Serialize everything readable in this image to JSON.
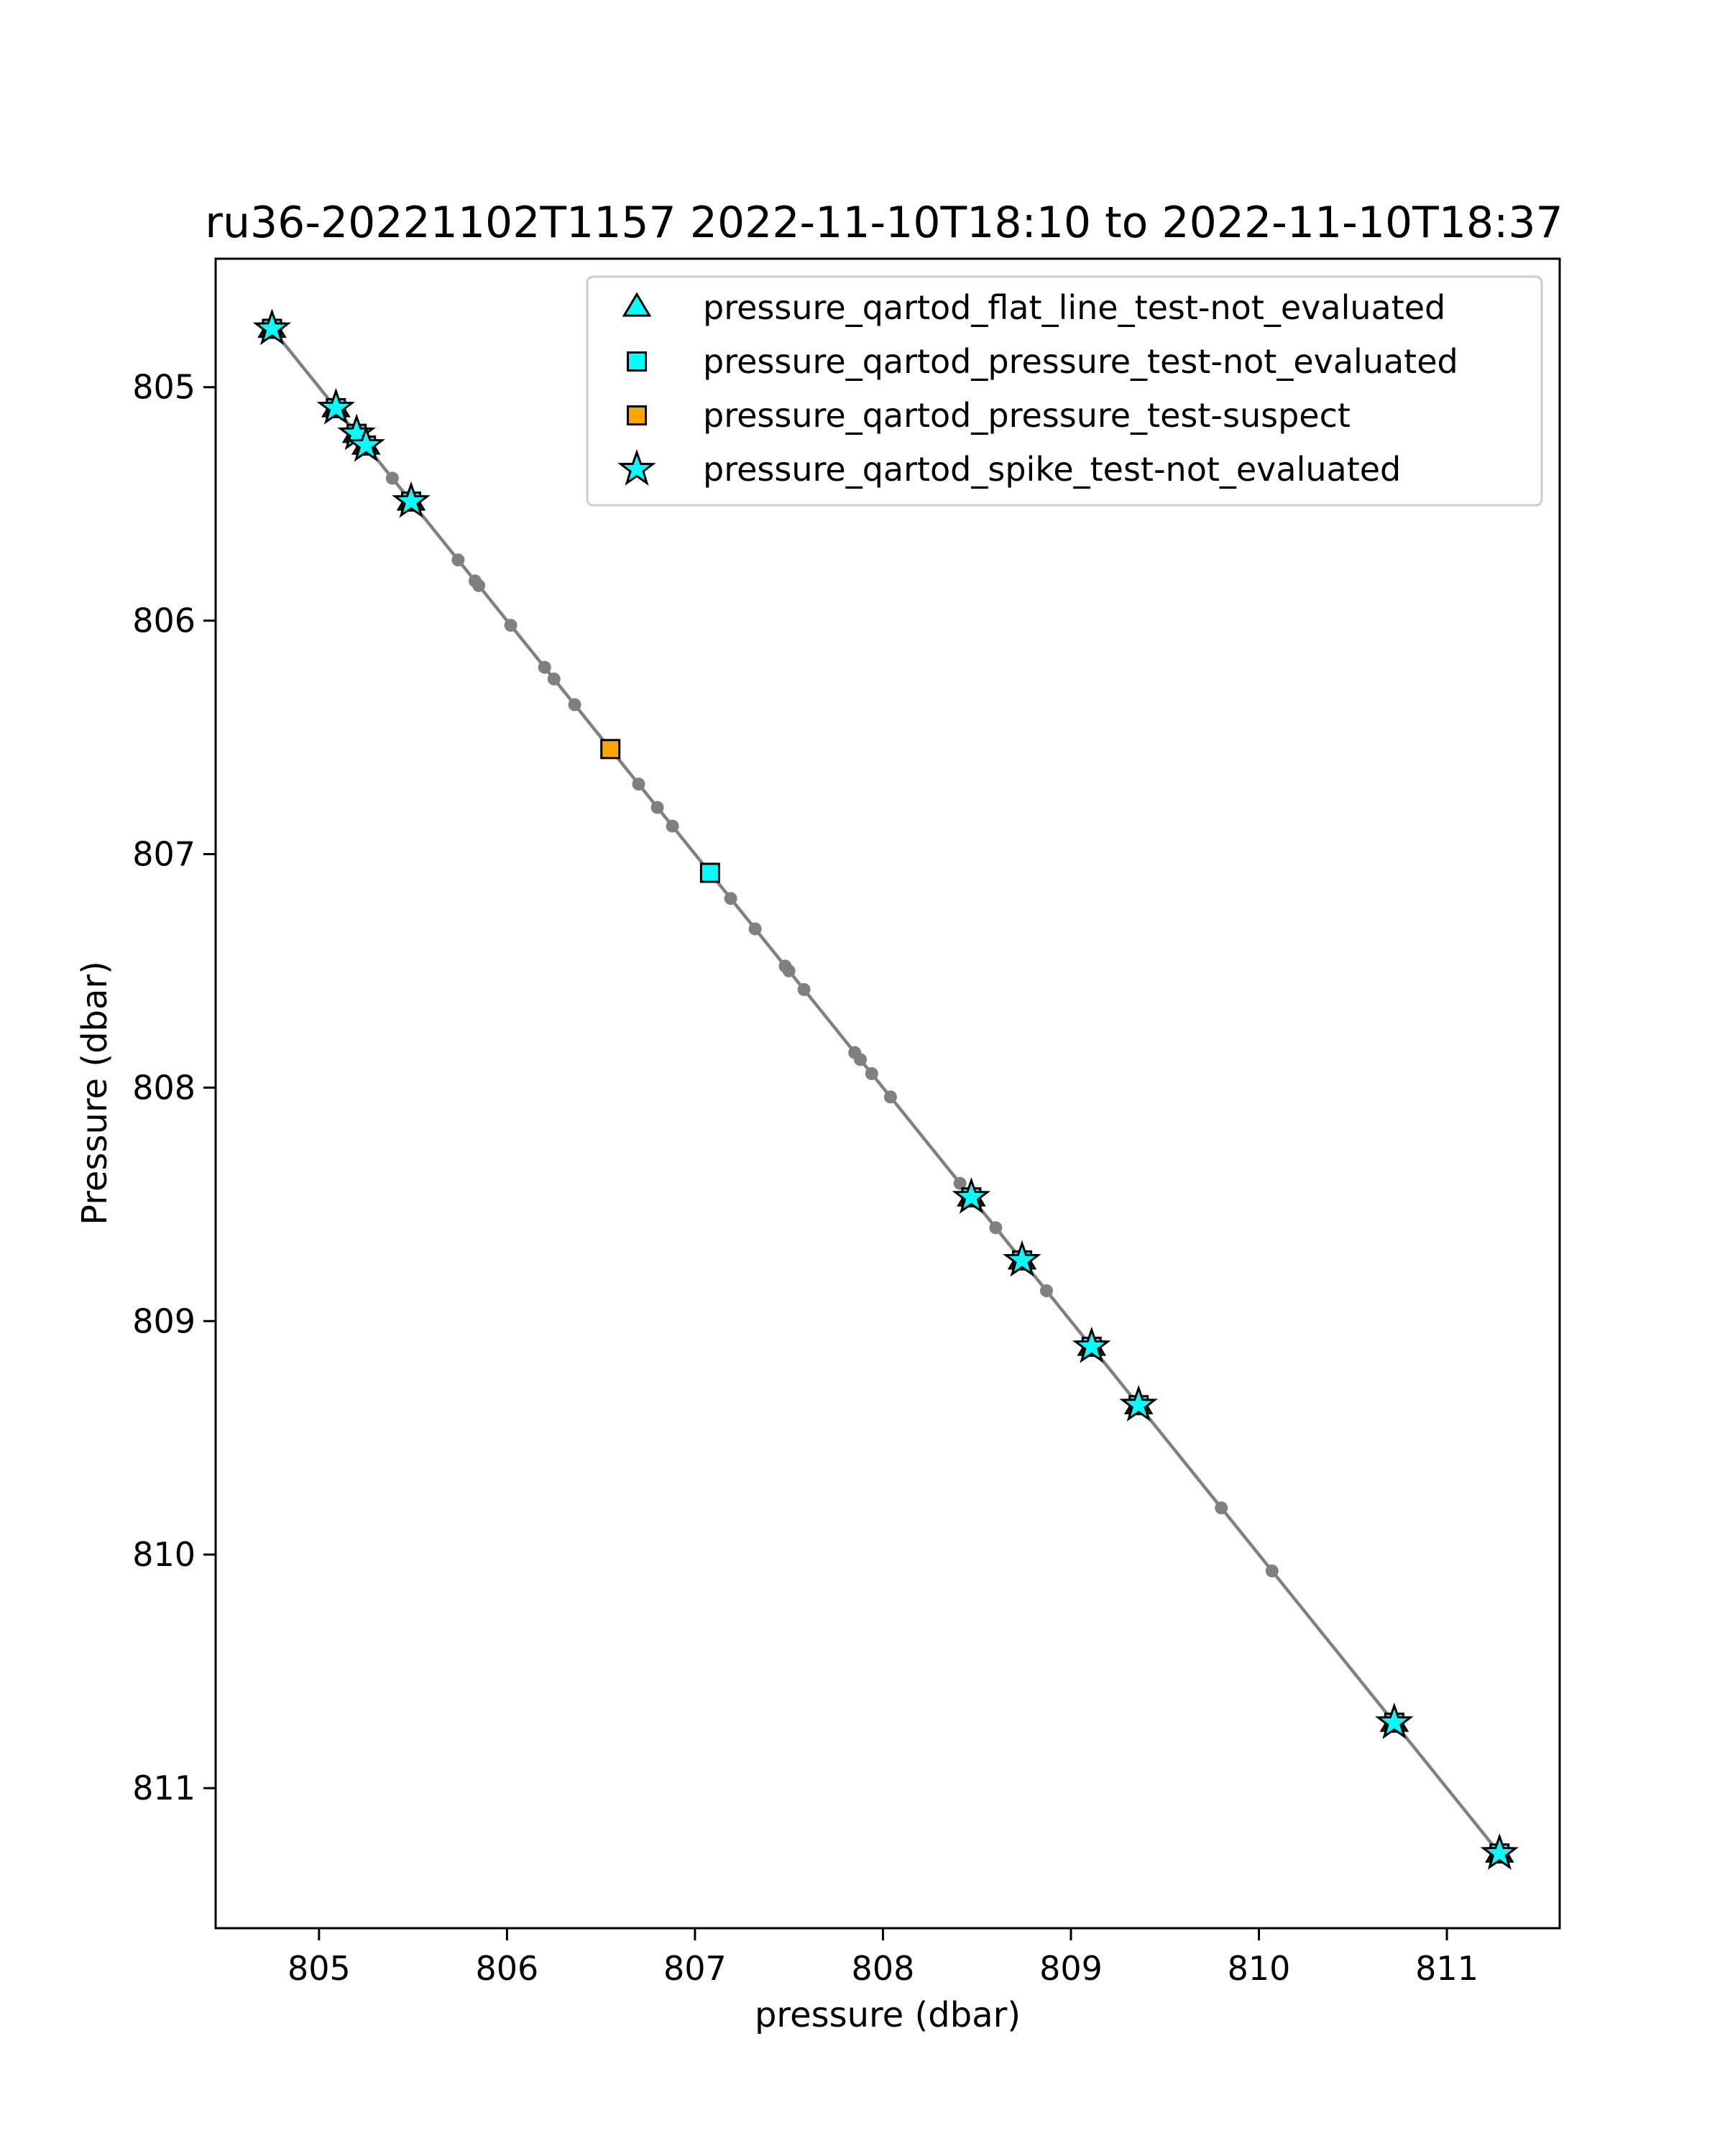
{
  "chart_data": {
    "type": "scatter",
    "title": "ru36-20221102T1157 2022-11-10T18:10 to 2022-11-10T18:37",
    "xlabel": "pressure (dbar)",
    "ylabel": "Pressure (dbar)",
    "xlim": [
      804.45,
      811.6
    ],
    "ylim": [
      811.6,
      804.45
    ],
    "y_inverted": true,
    "xticks": [
      805,
      806,
      807,
      808,
      809,
      810,
      811
    ],
    "yticks": [
      805,
      806,
      807,
      808,
      809,
      810,
      811
    ],
    "grid": false,
    "legend_position": "upper right",
    "line": {
      "color": "#808080",
      "points": [
        [
          804.75,
          804.75
        ],
        [
          805.09,
          805.09
        ],
        [
          805.2,
          805.2
        ],
        [
          805.25,
          805.25
        ],
        [
          805.39,
          805.39
        ],
        [
          805.49,
          805.49
        ],
        [
          805.74,
          805.74
        ],
        [
          805.83,
          805.83
        ],
        [
          805.85,
          805.85
        ],
        [
          806.02,
          806.02
        ],
        [
          806.2,
          806.2
        ],
        [
          806.25,
          806.25
        ],
        [
          806.36,
          806.36
        ],
        [
          806.55,
          806.55
        ],
        [
          806.7,
          806.7
        ],
        [
          806.8,
          806.8
        ],
        [
          806.88,
          806.88
        ],
        [
          807.08,
          807.08
        ],
        [
          807.19,
          807.19
        ],
        [
          807.32,
          807.32
        ],
        [
          807.48,
          807.48
        ],
        [
          807.5,
          807.5
        ],
        [
          807.58,
          807.58
        ],
        [
          807.85,
          807.85
        ],
        [
          807.88,
          807.88
        ],
        [
          807.94,
          807.94
        ],
        [
          808.04,
          808.04
        ],
        [
          808.41,
          808.41
        ],
        [
          808.47,
          808.47
        ],
        [
          808.6,
          808.6
        ],
        [
          808.74,
          808.74
        ],
        [
          808.87,
          808.87
        ],
        [
          809.11,
          809.11
        ],
        [
          809.36,
          809.36
        ],
        [
          809.8,
          809.8
        ],
        [
          810.07,
          810.07
        ],
        [
          810.72,
          810.72
        ],
        [
          811.28,
          811.28
        ]
      ]
    },
    "series": [
      {
        "name": "pressure_qartod_flat_line_test-not_evaluated",
        "marker": "triangle",
        "color": "#00ffff",
        "points": [
          [
            804.75,
            804.75
          ],
          [
            805.09,
            805.09
          ],
          [
            805.2,
            805.2
          ],
          [
            805.25,
            805.25
          ],
          [
            805.49,
            805.49
          ],
          [
            808.47,
            808.47
          ],
          [
            808.74,
            808.74
          ],
          [
            809.11,
            809.11
          ],
          [
            809.36,
            809.36
          ],
          [
            810.72,
            810.72
          ],
          [
            811.28,
            811.28
          ]
        ]
      },
      {
        "name": "pressure_qartod_pressure_test-not_evaluated",
        "marker": "square",
        "color": "#00ffff",
        "points": [
          [
            804.75,
            804.75
          ],
          [
            805.09,
            805.09
          ],
          [
            805.2,
            805.2
          ],
          [
            805.25,
            805.25
          ],
          [
            805.49,
            805.49
          ],
          [
            807.08,
            807.08
          ],
          [
            808.47,
            808.47
          ],
          [
            808.74,
            808.74
          ],
          [
            809.11,
            809.11
          ],
          [
            809.36,
            809.36
          ],
          [
            810.72,
            810.72
          ],
          [
            811.28,
            811.28
          ]
        ]
      },
      {
        "name": "pressure_qartod_pressure_test-suspect",
        "marker": "square",
        "color": "#ffa500",
        "points": [
          [
            806.55,
            806.55
          ]
        ]
      },
      {
        "name": "pressure_qartod_spike_test-not_evaluated",
        "marker": "star",
        "color": "#00ffff",
        "points": [
          [
            804.75,
            804.75
          ],
          [
            805.09,
            805.09
          ],
          [
            805.2,
            805.2
          ],
          [
            805.25,
            805.25
          ],
          [
            805.49,
            805.49
          ],
          [
            808.47,
            808.47
          ],
          [
            808.74,
            808.74
          ],
          [
            809.11,
            809.11
          ],
          [
            809.36,
            809.36
          ],
          [
            810.72,
            810.72
          ],
          [
            811.28,
            811.28
          ]
        ]
      }
    ]
  }
}
